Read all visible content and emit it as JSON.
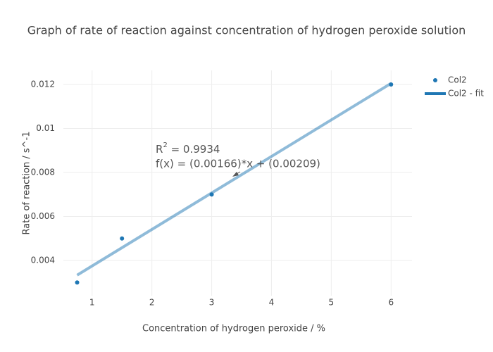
{
  "chart_data": {
    "type": "scatter",
    "title": "Graph of rate of reaction against concentration of hydrogen peroxide solution",
    "x_label": "Concentration of hydrogen peroxide / %",
    "y_label": "Rate of reaction / s^-1",
    "series": [
      {
        "name": "Col2",
        "color": "#1f77b4",
        "mode": "markers",
        "x": [
          0.75,
          1.5,
          3,
          6
        ],
        "values": [
          0.003,
          0.005,
          0.007,
          0.012
        ]
      },
      {
        "name": "Col2 - fit",
        "color": "#1f77b4",
        "mode": "lines",
        "opacity": 0.5,
        "x": [
          0.75,
          6
        ],
        "values": [
          0.003335,
          0.01205
        ]
      }
    ],
    "annotation": {
      "text_parts": [
        "R",
        "2",
        " = 0.9934"
      ],
      "equation": "f(x) = (0.00166)*x + (0.00209)"
    },
    "xlim": [
      0.52,
      6.35
    ],
    "ylim": [
      0.0024,
      0.01264
    ],
    "xticks": [
      1,
      2,
      3,
      4,
      5,
      6
    ],
    "yticks": [
      0.004,
      0.006,
      0.008,
      0.01,
      0.012
    ],
    "grid": true,
    "legend": "top-right"
  }
}
